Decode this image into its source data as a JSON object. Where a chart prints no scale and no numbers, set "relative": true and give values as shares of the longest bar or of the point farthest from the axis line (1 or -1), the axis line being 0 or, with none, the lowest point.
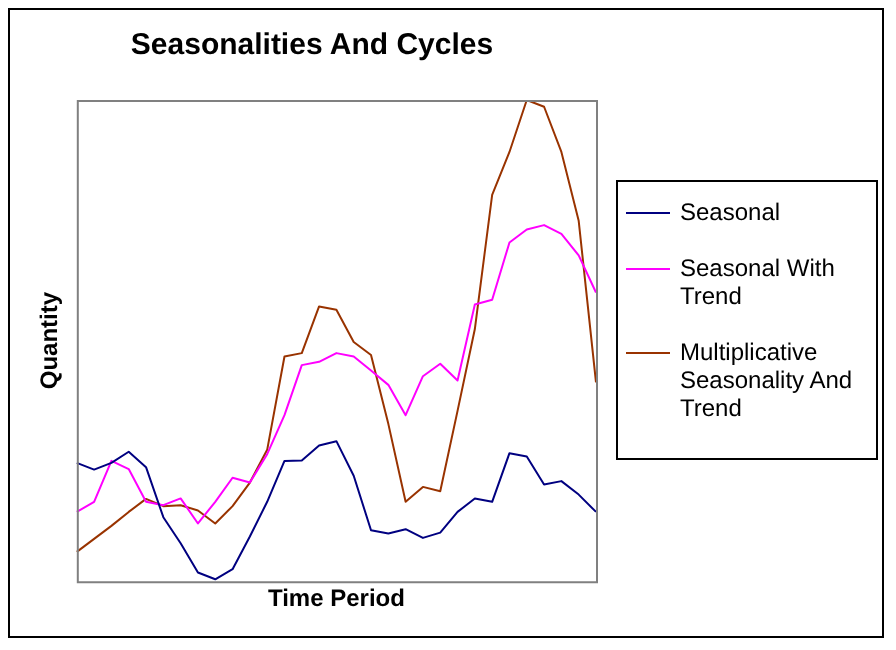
{
  "chart_data": {
    "type": "line",
    "title": "Seasonalities And Cycles",
    "xlabel": "Time Period",
    "ylabel": "Quantity",
    "relative": true,
    "grid": false,
    "legend": "right",
    "marker": "none",
    "line_style": "solid",
    "categories": [
      null,
      null,
      null,
      null,
      null,
      null,
      null,
      null,
      null,
      null,
      null,
      null,
      null,
      null,
      null,
      null,
      null,
      null,
      null,
      null,
      null,
      null,
      null,
      null,
      null,
      null,
      null,
      null,
      null,
      null,
      null
    ],
    "series": [
      {
        "name": "Seasonal",
        "color": "#000080",
        "values": [
          0.246,
          0.232,
          0.246,
          0.269,
          0.237,
          0.133,
          0.079,
          0.018,
          0.004,
          0.025,
          0.093,
          0.165,
          0.25,
          0.251,
          0.282,
          0.291,
          0.219,
          0.106,
          0.099,
          0.108,
          0.09,
          0.101,
          0.144,
          0.172,
          0.165,
          0.266,
          0.259,
          0.201,
          0.208,
          0.18,
          0.144
        ]
      },
      {
        "name": "Seasonal With Trend",
        "color": "#ff00ff",
        "values": [
          0.144,
          0.165,
          0.25,
          0.233,
          0.165,
          0.158,
          0.172,
          0.12,
          0.165,
          0.215,
          0.205,
          0.264,
          0.345,
          0.449,
          0.456,
          0.474,
          0.467,
          0.438,
          0.408,
          0.345,
          0.426,
          0.452,
          0.417,
          0.575,
          0.585,
          0.704,
          0.731,
          0.74,
          0.722,
          0.677,
          0.6
        ]
      },
      {
        "name": "Multiplicative Seasonality And Trend",
        "color": "#993300",
        "values": [
          0.061,
          0.088,
          0.115,
          0.144,
          0.171,
          0.156,
          0.158,
          0.147,
          0.12,
          0.156,
          0.205,
          0.273,
          0.467,
          0.474,
          0.571,
          0.564,
          0.497,
          0.47,
          0.327,
          0.165,
          0.196,
          0.187,
          0.354,
          0.524,
          0.803,
          0.892,
          1,
          0.986,
          0.892,
          0.749,
          0.413
        ]
      }
    ]
  }
}
